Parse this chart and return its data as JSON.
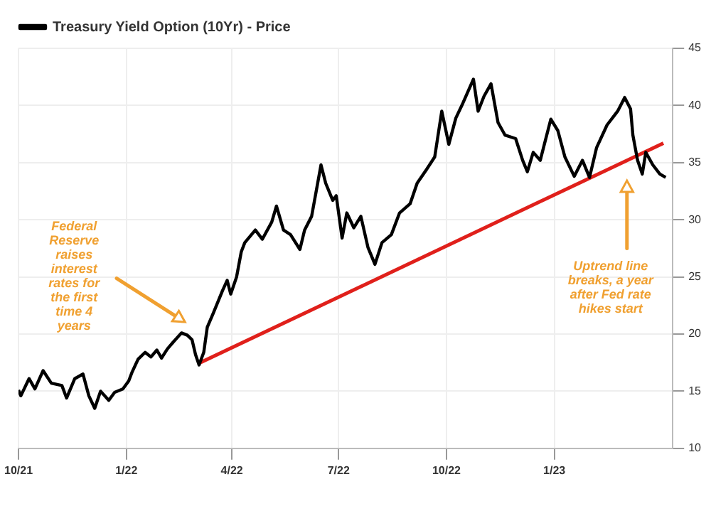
{
  "chart_data": {
    "type": "line",
    "x": [
      "2021-10-01",
      "2021-10-03",
      "2021-10-10",
      "2021-10-15",
      "2021-10-22",
      "2021-10-29",
      "2021-11-07",
      "2021-11-11",
      "2021-11-18",
      "2021-11-25",
      "2021-11-30",
      "2021-12-05",
      "2021-12-10",
      "2021-12-17",
      "2021-12-22",
      "2021-12-29",
      "2022-01-03",
      "2022-01-06",
      "2022-01-11",
      "2022-01-17",
      "2022-01-22",
      "2022-01-27",
      "2022-01-31",
      "2022-02-05",
      "2022-02-10",
      "2022-02-17",
      "2022-02-22",
      "2022-02-26",
      "2022-03-01",
      "2022-03-04",
      "2022-03-08",
      "2022-03-11",
      "2022-03-16",
      "2022-03-24",
      "2022-03-28",
      "2022-03-31",
      "2022-04-05",
      "2022-04-09",
      "2022-04-12",
      "2022-04-21",
      "2022-04-27",
      "2022-05-05",
      "2022-05-09",
      "2022-05-15",
      "2022-05-21",
      "2022-05-29",
      "2022-06-02",
      "2022-06-08",
      "2022-06-16",
      "2022-06-20",
      "2022-06-26",
      "2022-06-29",
      "2022-07-04",
      "2022-07-08",
      "2022-07-14",
      "2022-07-20",
      "2022-07-26",
      "2022-08-01",
      "2022-08-07",
      "2022-08-15",
      "2022-08-22",
      "2022-08-31",
      "2022-09-06",
      "2022-09-14",
      "2022-09-21",
      "2022-09-27",
      "2022-10-03",
      "2022-10-09",
      "2022-10-15",
      "2022-10-24",
      "2022-10-28",
      "2022-11-02",
      "2022-11-08",
      "2022-11-14",
      "2022-11-20",
      "2022-11-29",
      "2022-12-05",
      "2022-12-09",
      "2022-12-14",
      "2022-12-20",
      "2022-12-29",
      "2023-01-04",
      "2023-01-10",
      "2023-01-18",
      "2023-01-25",
      "2023-01-31",
      "2023-02-06",
      "2023-02-15",
      "2023-02-21",
      "2023-02-24",
      "2023-03-02",
      "2023-03-07",
      "2023-03-09",
      "2023-03-13",
      "2023-03-17",
      "2023-03-20",
      "2023-03-26",
      "2023-04-01",
      "2023-04-06"
    ],
    "series": [
      {
        "name": "Treasury Yield Option (10Yr) - Price",
        "color": "#000000",
        "values": [
          15.1,
          14.6,
          16.1,
          15.2,
          16.8,
          15.7,
          15.5,
          14.4,
          16.1,
          16.5,
          14.6,
          13.5,
          15.0,
          14.2,
          14.9,
          15.2,
          15.9,
          16.7,
          17.8,
          18.4,
          18.0,
          18.6,
          17.9,
          18.7,
          19.3,
          20.1,
          19.9,
          19.5,
          18.2,
          17.3,
          18.4,
          20.6,
          21.8,
          23.8,
          24.7,
          23.5,
          25.0,
          27.2,
          28.0,
          29.1,
          28.3,
          29.8,
          31.2,
          29.1,
          28.7,
          27.4,
          29.1,
          30.3,
          34.8,
          33.2,
          31.7,
          32.1,
          28.4,
          30.6,
          29.3,
          30.3,
          27.6,
          26.1,
          28.0,
          28.7,
          30.6,
          31.4,
          33.2,
          34.4,
          35.5,
          39.5,
          36.6,
          38.9,
          40.2,
          42.3,
          39.5,
          40.8,
          41.9,
          38.5,
          37.4,
          37.1,
          35.2,
          34.2,
          35.9,
          35.2,
          38.8,
          37.8,
          35.5,
          33.8,
          35.2,
          33.7,
          36.3,
          38.3,
          39.1,
          39.5,
          40.7,
          39.7,
          37.4,
          35.2,
          34.0,
          35.9,
          34.8,
          34.0,
          33.7
        ]
      },
      {
        "type": "line",
        "color": "#e0201b",
        "x": [
          "2022-03-03",
          "2023-04-04"
        ],
        "values": [
          17.4,
          36.7
        ]
      }
    ],
    "xlim": [
      "2021-10-01",
      "2023-04-12"
    ],
    "xticks": [
      {
        "value": "2021-10-01",
        "label": "10/21"
      },
      {
        "value": "2022-01-01",
        "label": "1/22"
      },
      {
        "value": "2022-04-01",
        "label": "4/22"
      },
      {
        "value": "2022-07-01",
        "label": "7/22"
      },
      {
        "value": "2022-10-01",
        "label": "10/22"
      },
      {
        "value": "2023-01-01",
        "label": "1/23"
      }
    ],
    "ylim": [
      10,
      45
    ],
    "yticks": [
      10,
      15,
      20,
      25,
      30,
      35,
      40,
      45
    ],
    "grid": true,
    "legend": "top left",
    "marker": "none",
    "line_style": "solid",
    "annotations": [
      "Federal Reserve raises interest rates for the first time 4 years",
      "Uptrend line breaks, a year after Fed rate hikes start"
    ]
  }
}
